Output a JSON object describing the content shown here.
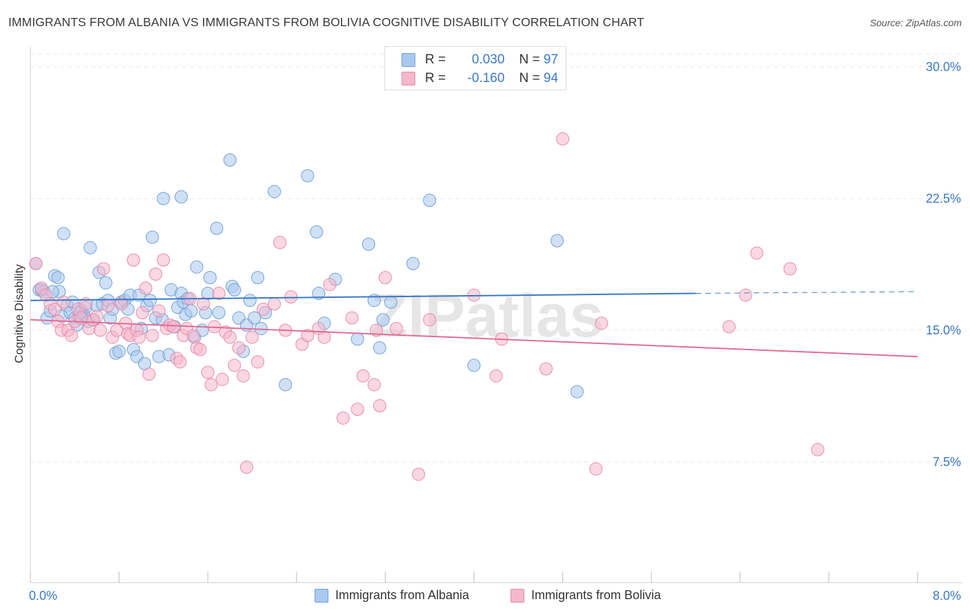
{
  "title": "IMMIGRANTS FROM ALBANIA VS IMMIGRANTS FROM BOLIVIA COGNITIVE DISABILITY CORRELATION CHART",
  "source": "Source: ZipAtlas.com",
  "watermark": "ZIPatlas",
  "legend": {
    "rows": [
      {
        "r_label": "R =",
        "r_value": "0.030",
        "n_label": "N =",
        "n_value": "97",
        "color": "#a9c9ee"
      },
      {
        "r_label": "R =",
        "r_value": "-0.160",
        "n_label": "N =",
        "n_value": "94",
        "color": "#f5b7cb"
      }
    ]
  },
  "bottom_legend": [
    {
      "label": "Immigrants from Albania",
      "color": "#a9c9ee"
    },
    {
      "label": "Immigrants from Bolivia",
      "color": "#f5b7cb"
    }
  ],
  "chart_data": {
    "type": "scatter",
    "title": "IMMIGRANTS FROM ALBANIA VS IMMIGRANTS FROM BOLIVIA COGNITIVE DISABILITY CORRELATION CHART",
    "xlabel": "",
    "ylabel": "Cognitive Disability",
    "xlim": [
      0,
      8
    ],
    "ylim": [
      0,
      32
    ],
    "x_tick_labels": [
      "0.0%",
      "8.0%"
    ],
    "y_ticks": [
      7.5,
      15.0,
      22.5,
      30.0
    ],
    "y_tick_labels": [
      "7.5%",
      "15.0%",
      "22.5%",
      "30.0%"
    ],
    "grid": true,
    "series": [
      {
        "name": "Immigrants from Albania",
        "color": "#a9c9ee",
        "stroke": "#6fa0d8",
        "trend_color": "#3a78c9",
        "trend": {
          "x0": 0,
          "y0": 16.7,
          "x1": 6.0,
          "y1": 17.1,
          "dashed_to": 8.0,
          "dashed_y": 17.2
        },
        "points": [
          [
            0.05,
            18.8
          ],
          [
            0.08,
            17.3
          ],
          [
            0.12,
            17.2
          ],
          [
            0.15,
            15.7
          ],
          [
            0.18,
            16.1
          ],
          [
            0.22,
            18.1
          ],
          [
            0.25,
            18.0
          ],
          [
            0.26,
            17.2
          ],
          [
            0.28,
            15.8
          ],
          [
            0.3,
            20.5
          ],
          [
            0.33,
            16.4
          ],
          [
            0.36,
            16.0
          ],
          [
            0.38,
            16.6
          ],
          [
            0.4,
            15.7
          ],
          [
            0.42,
            15.3
          ],
          [
            0.44,
            15.8
          ],
          [
            0.46,
            16.1
          ],
          [
            0.48,
            15.9
          ],
          [
            0.5,
            16.3
          ],
          [
            0.52,
            15.5
          ],
          [
            0.54,
            19.7
          ],
          [
            0.57,
            15.6
          ],
          [
            0.6,
            16.4
          ],
          [
            0.62,
            18.3
          ],
          [
            0.65,
            16.5
          ],
          [
            0.68,
            17.7
          ],
          [
            0.7,
            16.7
          ],
          [
            0.72,
            15.7
          ],
          [
            0.74,
            16.2
          ],
          [
            0.77,
            13.7
          ],
          [
            0.8,
            13.8
          ],
          [
            0.82,
            16.6
          ],
          [
            0.85,
            16.7
          ],
          [
            0.88,
            16.2
          ],
          [
            0.9,
            17.0
          ],
          [
            0.93,
            13.9
          ],
          [
            0.96,
            13.5
          ],
          [
            0.98,
            17.0
          ],
          [
            1.0,
            15.1
          ],
          [
            1.03,
            13.1
          ],
          [
            1.05,
            16.4
          ],
          [
            1.08,
            16.7
          ],
          [
            1.1,
            20.3
          ],
          [
            1.13,
            15.7
          ],
          [
            1.16,
            13.5
          ],
          [
            1.19,
            15.6
          ],
          [
            1.2,
            22.5
          ],
          [
            1.25,
            13.6
          ],
          [
            1.27,
            17.3
          ],
          [
            1.3,
            15.2
          ],
          [
            1.33,
            16.3
          ],
          [
            1.36,
            17.1
          ],
          [
            1.36,
            22.6
          ],
          [
            1.38,
            16.6
          ],
          [
            1.4,
            15.9
          ],
          [
            1.42,
            16.8
          ],
          [
            1.45,
            16.1
          ],
          [
            1.48,
            14.6
          ],
          [
            1.5,
            18.6
          ],
          [
            1.55,
            15.0
          ],
          [
            1.58,
            16.0
          ],
          [
            1.6,
            17.1
          ],
          [
            1.62,
            18.0
          ],
          [
            1.68,
            20.8
          ],
          [
            1.7,
            16.0
          ],
          [
            1.8,
            24.7
          ],
          [
            1.82,
            17.5
          ],
          [
            1.84,
            17.3
          ],
          [
            1.88,
            15.7
          ],
          [
            1.92,
            13.8
          ],
          [
            1.95,
            15.3
          ],
          [
            1.98,
            16.7
          ],
          [
            2.02,
            15.7
          ],
          [
            2.05,
            18.0
          ],
          [
            2.08,
            15.1
          ],
          [
            2.12,
            16.0
          ],
          [
            2.2,
            22.9
          ],
          [
            2.3,
            11.9
          ],
          [
            2.5,
            23.8
          ],
          [
            2.58,
            20.6
          ],
          [
            2.6,
            17.1
          ],
          [
            2.65,
            15.4
          ],
          [
            2.75,
            17.9
          ],
          [
            2.95,
            14.5
          ],
          [
            3.05,
            19.9
          ],
          [
            3.1,
            16.7
          ],
          [
            3.15,
            14.0
          ],
          [
            3.18,
            15.6
          ],
          [
            3.25,
            16.6
          ],
          [
            3.45,
            18.8
          ],
          [
            3.6,
            22.4
          ],
          [
            4.0,
            13.0
          ],
          [
            4.75,
            20.1
          ],
          [
            4.93,
            11.5
          ],
          [
            0.1,
            17.3
          ],
          [
            0.2,
            17.2
          ],
          [
            0.45,
            16.0
          ]
        ]
      },
      {
        "name": "Immigrants from Bolivia",
        "color": "#f5b7cb",
        "stroke": "#e88aa8",
        "trend_color": "#e06d97",
        "trend": {
          "x0": 0,
          "y0": 15.6,
          "x1": 8.0,
          "y1": 13.5
        },
        "points": [
          [
            0.05,
            18.8
          ],
          [
            0.1,
            17.4
          ],
          [
            0.14,
            17.0
          ],
          [
            0.18,
            16.5
          ],
          [
            0.22,
            16.2
          ],
          [
            0.25,
            15.5
          ],
          [
            0.28,
            15.0
          ],
          [
            0.3,
            16.6
          ],
          [
            0.34,
            15.0
          ],
          [
            0.37,
            14.7
          ],
          [
            0.4,
            15.5
          ],
          [
            0.43,
            16.2
          ],
          [
            0.46,
            15.7
          ],
          [
            0.5,
            16.5
          ],
          [
            0.53,
            15.1
          ],
          [
            0.56,
            15.6
          ],
          [
            0.6,
            15.8
          ],
          [
            0.63,
            15.0
          ],
          [
            0.66,
            18.5
          ],
          [
            0.7,
            16.4
          ],
          [
            0.74,
            14.6
          ],
          [
            0.78,
            15.0
          ],
          [
            0.82,
            16.5
          ],
          [
            0.86,
            15.4
          ],
          [
            0.88,
            14.8
          ],
          [
            0.9,
            14.7
          ],
          [
            0.93,
            19.0
          ],
          [
            0.96,
            15.0
          ],
          [
            0.98,
            14.6
          ],
          [
            1.01,
            16.0
          ],
          [
            1.04,
            17.4
          ],
          [
            1.07,
            12.5
          ],
          [
            1.1,
            14.7
          ],
          [
            1.13,
            18.2
          ],
          [
            1.16,
            16.1
          ],
          [
            1.2,
            19.0
          ],
          [
            1.23,
            15.1
          ],
          [
            1.26,
            15.3
          ],
          [
            1.29,
            15.2
          ],
          [
            1.32,
            13.4
          ],
          [
            1.35,
            13.2
          ],
          [
            1.38,
            14.7
          ],
          [
            1.41,
            15.1
          ],
          [
            1.44,
            16.8
          ],
          [
            1.47,
            14.7
          ],
          [
            1.5,
            14.0
          ],
          [
            1.53,
            13.9
          ],
          [
            1.56,
            16.5
          ],
          [
            1.6,
            12.6
          ],
          [
            1.63,
            11.9
          ],
          [
            1.66,
            15.2
          ],
          [
            1.7,
            17.1
          ],
          [
            1.73,
            12.2
          ],
          [
            1.76,
            14.9
          ],
          [
            1.8,
            14.6
          ],
          [
            1.84,
            13.0
          ],
          [
            1.88,
            14.0
          ],
          [
            1.92,
            12.4
          ],
          [
            1.95,
            7.2
          ],
          [
            2.0,
            14.6
          ],
          [
            2.05,
            13.2
          ],
          [
            2.1,
            16.2
          ],
          [
            2.2,
            16.5
          ],
          [
            2.25,
            20.0
          ],
          [
            2.3,
            15.0
          ],
          [
            2.35,
            16.9
          ],
          [
            2.45,
            14.2
          ],
          [
            2.5,
            14.7
          ],
          [
            2.6,
            15.1
          ],
          [
            2.65,
            14.6
          ],
          [
            2.7,
            17.6
          ],
          [
            2.82,
            10.0
          ],
          [
            2.9,
            15.7
          ],
          [
            2.95,
            10.5
          ],
          [
            3.0,
            12.4
          ],
          [
            3.1,
            11.9
          ],
          [
            3.12,
            15.0
          ],
          [
            3.15,
            10.7
          ],
          [
            3.2,
            18.0
          ],
          [
            3.3,
            15.1
          ],
          [
            3.5,
            6.8
          ],
          [
            3.6,
            15.6
          ],
          [
            4.0,
            17.0
          ],
          [
            4.2,
            12.4
          ],
          [
            4.25,
            14.5
          ],
          [
            4.65,
            12.8
          ],
          [
            4.8,
            25.9
          ],
          [
            5.1,
            7.1
          ],
          [
            5.15,
            15.4
          ],
          [
            6.3,
            15.2
          ],
          [
            6.45,
            17.0
          ],
          [
            6.55,
            19.4
          ],
          [
            6.85,
            18.5
          ],
          [
            7.1,
            8.2
          ]
        ]
      }
    ]
  }
}
